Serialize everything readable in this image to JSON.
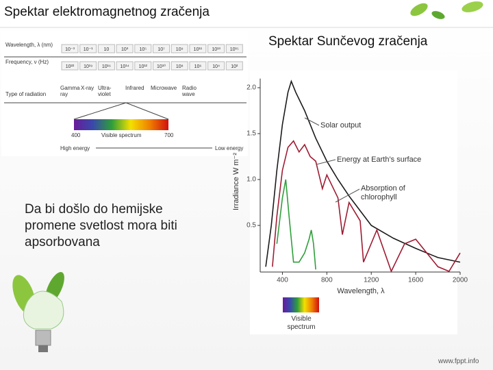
{
  "header": {
    "title": "Spektar elektromagnetnog zračenja"
  },
  "subtitle": "Spektar Sunčevog zračenja",
  "body": "Da bi došlo do hemijske promene svetlost mora biti apsorbovana",
  "footer": "www.fppt.info",
  "em_spectrum": {
    "wavelength_label": "Wavelength, λ (nm)",
    "wavelengths": [
      "10⁻³",
      "10⁻¹",
      "10",
      "10³",
      "10⁵",
      "10⁷",
      "10⁹",
      "10¹¹",
      "10¹³",
      "10¹⁵"
    ],
    "frequency_label": "Frequency, ν (Hz)",
    "frequencies": [
      "10²²",
      "10¹⁹",
      "10¹⁶",
      "10¹⁴",
      "10¹²",
      "10¹⁰",
      "10⁸",
      "10⁶",
      "10⁴",
      "10²"
    ],
    "type_label": "Type of radiation",
    "types": [
      "Gamma ray",
      "X-ray",
      "Ultra-violet",
      "Infrared",
      "Microwave",
      "Radio wave"
    ],
    "visible_start": "400",
    "visible_label": "Visible spectrum",
    "visible_end": "700",
    "high": "High energy",
    "low": "Low energy"
  },
  "chart_data": {
    "type": "line",
    "xlabel": "Wavelength, λ",
    "ylabel": "Irradiance W m⁻²",
    "xlim": [
      200,
      2000
    ],
    "ylim": [
      0,
      2.1
    ],
    "xticks": [
      400,
      800,
      1200,
      1600,
      2000
    ],
    "yticks": [
      0.5,
      {
        "value": 1,
        "label": "1.0"
      },
      1.5,
      {
        "value": 2,
        "label": "2.0"
      }
    ],
    "spectrum_label": "Visible spectrum",
    "series": [
      {
        "name": "Solar output",
        "color": "#1a1a1a",
        "x": [
          250,
          300,
          350,
          400,
          450,
          480,
          520,
          600,
          700,
          800,
          900,
          1000,
          1200,
          1400,
          1600,
          1800,
          2000
        ],
        "values": [
          0.05,
          0.5,
          1.1,
          1.6,
          1.95,
          2.07,
          1.95,
          1.75,
          1.45,
          1.2,
          1.0,
          0.82,
          0.5,
          0.36,
          0.25,
          0.15,
          0.1
        ]
      },
      {
        "name": "Energy at Earth’s surface",
        "color": "#9e1b32",
        "x": [
          310,
          350,
          400,
          450,
          500,
          550,
          600,
          650,
          700,
          760,
          800,
          900,
          940,
          1000,
          1100,
          1130,
          1250,
          1380,
          1500,
          1600,
          1800,
          1900,
          2000
        ],
        "values": [
          0.05,
          0.6,
          1.1,
          1.35,
          1.42,
          1.3,
          1.38,
          1.25,
          1.2,
          0.9,
          1.05,
          0.8,
          0.4,
          0.75,
          0.55,
          0.1,
          0.45,
          0.0,
          0.3,
          0.35,
          0.05,
          0.0,
          0.2
        ]
      },
      {
        "name": "Absorption of chlorophyll",
        "color": "#2e9e3a",
        "x": [
          350,
          400,
          430,
          460,
          500,
          550,
          600,
          640,
          660,
          680,
          700
        ],
        "values": [
          0.3,
          0.8,
          1.0,
          0.6,
          0.1,
          0.1,
          0.2,
          0.35,
          0.45,
          0.3,
          0.02
        ]
      }
    ]
  }
}
